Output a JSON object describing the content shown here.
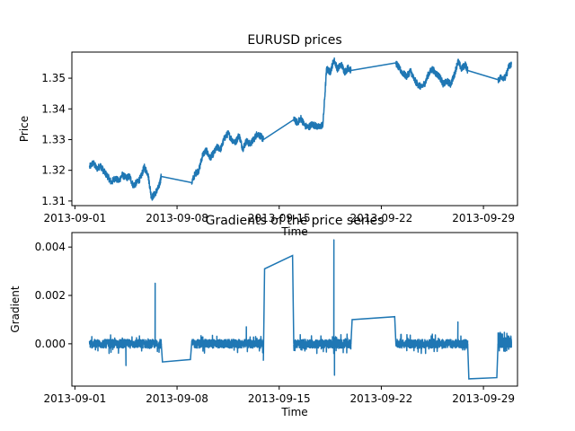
{
  "figure": {
    "series_color": "#1f77b4"
  },
  "chart_data": [
    {
      "type": "line",
      "title": "EURUSD prices",
      "xlabel": "Time",
      "ylabel": "Price",
      "x_tick_labels": [
        "2013-09-01",
        "2013-09-08",
        "2013-09-15",
        "2013-09-22",
        "2013-09-29"
      ],
      "x_ticks": [
        "2013-09-01",
        "2013-09-08",
        "2013-09-15",
        "2013-09-22",
        "2013-09-29"
      ],
      "y_tick_labels": [
        "1.31",
        "1.32",
        "1.33",
        "1.34",
        "1.35"
      ],
      "y_ticks": [
        1.31,
        1.32,
        1.33,
        1.34,
        1.35
      ],
      "xlim": [
        "2013-08-31T19:00",
        "2013-10-01T08:00"
      ],
      "ylim": [
        1.3085,
        1.3585
      ],
      "grid": false,
      "series": [
        {
          "x": [
            "2013-09-02T00:00",
            "2013-09-02T06:00",
            "2013-09-02T12:00",
            "2013-09-02T18:00",
            "2013-09-03T00:00",
            "2013-09-03T06:00",
            "2013-09-03T12:00",
            "2013-09-03T18:00",
            "2013-09-04T00:00",
            "2013-09-04T06:00",
            "2013-09-04T12:00",
            "2013-09-04T18:00",
            "2013-09-05T00:00",
            "2013-09-05T06:00",
            "2013-09-05T12:00",
            "2013-09-05T18:00",
            "2013-09-06T00:00",
            "2013-09-06T06:00",
            "2013-09-06T12:00",
            "2013-09-06T18:00",
            "2013-09-06T22:00",
            "2013-09-09T00:00",
            "2013-09-09T06:00",
            "2013-09-09T12:00",
            "2013-09-09T18:00",
            "2013-09-10T00:00",
            "2013-09-10T06:00",
            "2013-09-10T12:00",
            "2013-09-10T18:00",
            "2013-09-11T00:00",
            "2013-09-11T06:00",
            "2013-09-11T12:00",
            "2013-09-11T18:00",
            "2013-09-12T00:00",
            "2013-09-12T06:00",
            "2013-09-12T12:00",
            "2013-09-12T18:00",
            "2013-09-13T00:00",
            "2013-09-13T06:00",
            "2013-09-13T12:00",
            "2013-09-13T18:00",
            "2013-09-13T22:00",
            "2013-09-16T00:00",
            "2013-09-16T06:00",
            "2013-09-16T12:00",
            "2013-09-16T18:00",
            "2013-09-17T00:00",
            "2013-09-17T06:00",
            "2013-09-17T12:00",
            "2013-09-17T18:00",
            "2013-09-18T00:00",
            "2013-09-18T06:00",
            "2013-09-18T12:00",
            "2013-09-18T18:00",
            "2013-09-19T00:00",
            "2013-09-19T06:00",
            "2013-09-19T12:00",
            "2013-09-19T18:00",
            "2013-09-19T22:00",
            "2013-09-23T00:00",
            "2013-09-23T06:00",
            "2013-09-23T12:00",
            "2013-09-23T18:00",
            "2013-09-24T00:00",
            "2013-09-24T06:00",
            "2013-09-24T12:00",
            "2013-09-24T18:00",
            "2013-09-25T00:00",
            "2013-09-25T06:00",
            "2013-09-25T12:00",
            "2013-09-25T18:00",
            "2013-09-26T00:00",
            "2013-09-26T06:00",
            "2013-09-26T12:00",
            "2013-09-26T18:00",
            "2013-09-27T00:00",
            "2013-09-27T06:00",
            "2013-09-27T12:00",
            "2013-09-27T18:00",
            "2013-09-27T22:00",
            "2013-09-30T00:00",
            "2013-09-30T06:00",
            "2013-09-30T12:00",
            "2013-09-30T18:00",
            "2013-09-30T22:00"
          ],
          "y": [
            1.321,
            1.3225,
            1.3205,
            1.3215,
            1.3195,
            1.318,
            1.316,
            1.3175,
            1.3165,
            1.3185,
            1.3175,
            1.318,
            1.315,
            1.316,
            1.3175,
            1.321,
            1.319,
            1.311,
            1.3125,
            1.3145,
            1.318,
            1.316,
            1.319,
            1.32,
            1.325,
            1.3265,
            1.324,
            1.3255,
            1.3275,
            1.327,
            1.3305,
            1.332,
            1.33,
            1.329,
            1.3315,
            1.327,
            1.3295,
            1.3285,
            1.33,
            1.332,
            1.331,
            1.33,
            1.3365,
            1.3355,
            1.337,
            1.3345,
            1.334,
            1.335,
            1.3345,
            1.334,
            1.335,
            1.353,
            1.352,
            1.356,
            1.353,
            1.3545,
            1.352,
            1.3535,
            1.3525,
            1.355,
            1.353,
            1.3515,
            1.3505,
            1.3525,
            1.3495,
            1.348,
            1.347,
            1.3485,
            1.3515,
            1.353,
            1.3515,
            1.3505,
            1.348,
            1.349,
            1.348,
            1.351,
            1.3555,
            1.353,
            1.3545,
            1.3525,
            1.3495,
            1.3505,
            1.35,
            1.354,
            1.3545
          ]
        }
      ]
    },
    {
      "type": "line",
      "title": "Gradients of the price series",
      "xlabel": "Time",
      "ylabel": "Gradient",
      "x_tick_labels": [
        "2013-09-01",
        "2013-09-08",
        "2013-09-15",
        "2013-09-22",
        "2013-09-29"
      ],
      "x_ticks": [
        "2013-09-01",
        "2013-09-08",
        "2013-09-15",
        "2013-09-22",
        "2013-09-29"
      ],
      "y_tick_labels": [
        "0.000",
        "0.002",
        "0.004"
      ],
      "y_ticks": [
        0.0,
        0.002,
        0.004
      ],
      "xlim": [
        "2013-08-31T19:00",
        "2013-10-01T08:00"
      ],
      "ylim": [
        -0.00175,
        0.0046
      ],
      "grid": false,
      "series": [
        {
          "segments": [
            {
              "x_start": "2013-09-02T00:00",
              "x_end": "2013-09-06T22:00",
              "noise_band": [
                -0.0004,
                0.0004
              ],
              "spikes": [
                {
                  "x": "2013-09-06T12:00",
                  "y": 0.0025
                },
                {
                  "x": "2013-09-04T12:00",
                  "y": -0.0009
                }
              ]
            },
            {
              "x_start": "2013-09-09T00:00",
              "x_end": "2013-09-13T22:00",
              "noise_band": [
                -0.0004,
                0.0004
              ],
              "spikes": [
                {
                  "x": "2013-09-12T18:00",
                  "y": 0.0007
                }
              ]
            },
            {
              "x_start": "2013-09-16T00:00",
              "x_end": "2013-09-19T22:00",
              "noise_band": [
                -0.0004,
                0.0004
              ],
              "spikes": [
                {
                  "x": "2013-09-18T18:00",
                  "y": 0.0043
                },
                {
                  "x": "2013-09-18T19:00",
                  "y": -0.0013
                }
              ]
            },
            {
              "x_start": "2013-09-23T00:00",
              "x_end": "2013-09-27T22:00",
              "noise_band": [
                -0.0004,
                0.0004
              ],
              "spikes": [
                {
                  "x": "2013-09-27T06:00",
                  "y": 0.0009
                }
              ]
            },
            {
              "x_start": "2013-09-30T00:00",
              "x_end": "2013-09-30T22:00",
              "noise_band": [
                -0.0004,
                0.0005
              ],
              "spikes": []
            }
          ],
          "gap_lines": [
            {
              "x": [
                "2013-09-06T22:00",
                "2013-09-07T00:00",
                "2013-09-08T22:00",
                "2013-09-09T00:00"
              ],
              "y": [
                0.0,
                -0.00075,
                -0.00065,
                0.0
              ]
            },
            {
              "x": [
                "2013-09-13T22:00",
                "2013-09-14T00:00",
                "2013-09-15T22:00",
                "2013-09-16T00:00"
              ],
              "y": [
                -0.0007,
                0.0031,
                0.00365,
                0.0
              ]
            },
            {
              "x": [
                "2013-09-19T22:00",
                "2013-09-20T00:00",
                "2013-09-22T22:00",
                "2013-09-23T00:00"
              ],
              "y": [
                0.0,
                0.001,
                0.00112,
                0.0
              ]
            },
            {
              "x": [
                "2013-09-27T22:00",
                "2013-09-28T00:00",
                "2013-09-29T22:00",
                "2013-09-30T00:00"
              ],
              "y": [
                0.0,
                -0.00145,
                -0.0014,
                0.0
              ]
            }
          ]
        }
      ]
    }
  ]
}
